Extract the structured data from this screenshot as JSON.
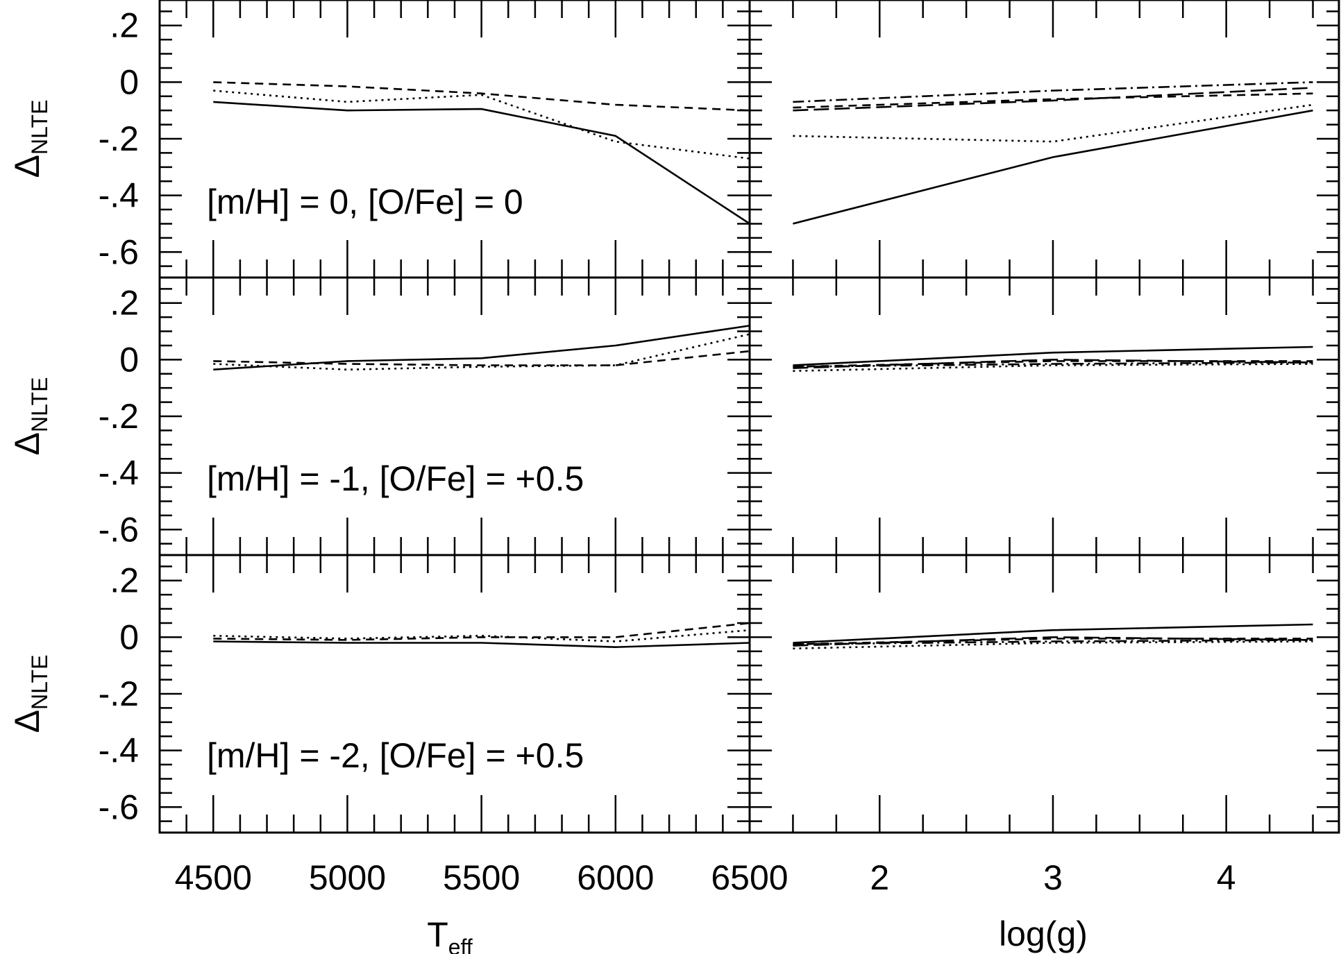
{
  "figure": {
    "ylabel_main": "Δ",
    "ylabel_sub": "NLTE",
    "left_xlabel_main": "T",
    "left_xlabel_sub": "eff",
    "right_xlabel": "log(g)"
  },
  "chart_data": [
    {
      "type": "line",
      "panel": "top-left",
      "annotation": "[m/H] = 0, [O/Fe] = 0",
      "xlabel": "Teff",
      "ylabel": "ΔNLTE",
      "xlim": [
        4300,
        6500
      ],
      "ylim": [
        -0.69,
        0.29
      ],
      "xticks": [
        4500,
        5000,
        5500,
        6000,
        6500
      ],
      "yticks": [
        ".2",
        "0",
        "-.2",
        "-.4",
        "-.6"
      ],
      "x": [
        4500,
        5000,
        5500,
        6000,
        6500
      ],
      "series": [
        {
          "style": "solid",
          "values": [
            -0.07,
            -0.1,
            -0.095,
            -0.19,
            -0.5
          ]
        },
        {
          "style": "dotted",
          "values": [
            -0.03,
            -0.07,
            -0.045,
            -0.21,
            -0.27
          ]
        },
        {
          "style": "dashed",
          "values": [
            0.0,
            -0.015,
            -0.04,
            -0.08,
            -0.1
          ]
        }
      ]
    },
    {
      "type": "line",
      "panel": "top-right",
      "xlabel": "log(g)",
      "ylabel": "ΔNLTE",
      "xlim": [
        1.25,
        4.65
      ],
      "ylim": [
        -0.69,
        0.29
      ],
      "xticks": [
        2,
        3,
        4
      ],
      "x": [
        1.5,
        3.0,
        4.5
      ],
      "series": [
        {
          "style": "solid",
          "values": [
            -0.5,
            -0.265,
            -0.1
          ]
        },
        {
          "style": "dotted",
          "values": [
            -0.19,
            -0.21,
            -0.08
          ]
        },
        {
          "style": "dashed",
          "values": [
            -0.09,
            -0.06,
            -0.04
          ]
        },
        {
          "style": "long-dashed",
          "values": [
            -0.1,
            -0.065,
            -0.02
          ]
        },
        {
          "style": "dash-dot",
          "values": [
            -0.07,
            -0.03,
            0.0
          ]
        }
      ]
    },
    {
      "type": "line",
      "panel": "middle-left",
      "annotation": "[m/H] = -1, [O/Fe] = +0.5",
      "xlabel": "Teff",
      "ylabel": "ΔNLTE",
      "xlim": [
        4300,
        6500
      ],
      "ylim": [
        -0.69,
        0.29
      ],
      "xticks": [
        4500,
        5000,
        5500,
        6000,
        6500
      ],
      "yticks": [
        ".2",
        "0",
        "-.2",
        "-.4",
        "-.6"
      ],
      "x": [
        4500,
        5000,
        5500,
        6000,
        6500
      ],
      "series": [
        {
          "style": "solid",
          "values": [
            -0.035,
            -0.005,
            0.005,
            0.05,
            0.12
          ]
        },
        {
          "style": "dotted",
          "values": [
            -0.015,
            -0.035,
            -0.025,
            -0.02,
            0.09
          ]
        },
        {
          "style": "dashed",
          "values": [
            -0.005,
            -0.015,
            -0.02,
            -0.02,
            0.03
          ]
        }
      ]
    },
    {
      "type": "line",
      "panel": "middle-right",
      "xlabel": "log(g)",
      "ylabel": "ΔNLTE",
      "xlim": [
        1.25,
        4.65
      ],
      "ylim": [
        -0.69,
        0.29
      ],
      "xticks": [
        2,
        3,
        4
      ],
      "x": [
        1.5,
        3.0,
        4.5
      ],
      "series": [
        {
          "style": "solid",
          "values": [
            -0.02,
            0.025,
            0.045
          ]
        },
        {
          "style": "dotted",
          "values": [
            -0.04,
            -0.02,
            -0.015
          ]
        },
        {
          "style": "dashed",
          "values": [
            -0.025,
            -0.005,
            -0.005
          ]
        },
        {
          "style": "long-dashed",
          "values": [
            -0.03,
            0.0,
            -0.01
          ]
        },
        {
          "style": "dash-dot",
          "values": [
            -0.025,
            -0.015,
            -0.01
          ]
        }
      ]
    },
    {
      "type": "line",
      "panel": "bottom-left",
      "annotation": "[m/H] = -2, [O/Fe] = +0.5",
      "xlabel": "Teff",
      "ylabel": "ΔNLTE",
      "xlim": [
        4300,
        6500
      ],
      "ylim": [
        -0.69,
        0.29
      ],
      "xticks": [
        4500,
        5000,
        5500,
        6000,
        6500
      ],
      "yticks": [
        ".2",
        "0",
        "-.2",
        "-.4",
        "-.6"
      ],
      "x": [
        4500,
        5000,
        5500,
        6000,
        6500
      ],
      "series": [
        {
          "style": "solid",
          "values": [
            -0.015,
            -0.02,
            -0.02,
            -0.035,
            -0.02
          ]
        },
        {
          "style": "dotted",
          "values": [
            0.005,
            -0.005,
            0.005,
            -0.015,
            0.025
          ]
        },
        {
          "style": "dashed",
          "values": [
            -0.005,
            -0.01,
            0.0,
            0.0,
            0.05
          ]
        }
      ]
    },
    {
      "type": "line",
      "panel": "bottom-right",
      "xlabel": "log(g)",
      "ylabel": "ΔNLTE",
      "xlim": [
        1.25,
        4.65
      ],
      "ylim": [
        -0.69,
        0.29
      ],
      "xticks": [
        2,
        3,
        4
      ],
      "x": [
        1.5,
        3.0,
        4.5
      ],
      "series": [
        {
          "style": "solid",
          "values": [
            -0.02,
            0.025,
            0.045
          ]
        },
        {
          "style": "dotted",
          "values": [
            -0.04,
            -0.02,
            -0.015
          ]
        },
        {
          "style": "dashed",
          "values": [
            -0.025,
            -0.005,
            -0.005
          ]
        },
        {
          "style": "long-dashed",
          "values": [
            -0.03,
            0.0,
            -0.01
          ]
        },
        {
          "style": "dash-dot",
          "values": [
            -0.025,
            -0.015,
            -0.01
          ]
        }
      ]
    }
  ]
}
